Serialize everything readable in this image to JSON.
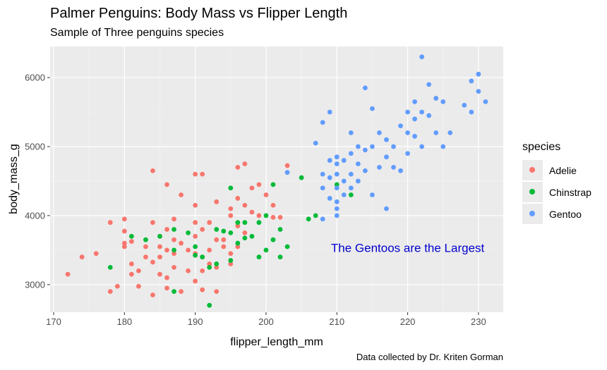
{
  "title": "Palmer Penguins: Body Mass vs Flipper Length",
  "subtitle": "Sample of Three penguins species",
  "caption": "Data collected by Dr. Kriten Gorman",
  "chart_data": {
    "type": "scatter",
    "title": "Palmer Penguins: Body Mass vs Flipper Length",
    "subtitle": "Sample of Three penguins species",
    "xlabel": "flipper_length_mm",
    "ylabel": "body_mass_g",
    "xlim": [
      169.5,
      233.5
    ],
    "ylim": [
      2600,
      6450
    ],
    "xticks": [
      170,
      180,
      190,
      200,
      210,
      220,
      230
    ],
    "yticks": [
      3000,
      4000,
      5000,
      6000
    ],
    "grid": true,
    "legend_title": "species",
    "legend_position": "right",
    "annotation": {
      "text": "The Gentoos are the Largest",
      "x": 220,
      "y": 3475
    },
    "series": [
      {
        "name": "Adelie",
        "color": "#F8766D",
        "points": [
          [
            172,
            3150
          ],
          [
            174,
            3400
          ],
          [
            176,
            3450
          ],
          [
            178,
            3900
          ],
          [
            178,
            2900
          ],
          [
            179,
            2975
          ],
          [
            180,
            3950
          ],
          [
            180,
            3775
          ],
          [
            180,
            3600
          ],
          [
            180,
            3550
          ],
          [
            181,
            3300
          ],
          [
            181,
            3150
          ],
          [
            181,
            3625
          ],
          [
            182,
            2975
          ],
          [
            182,
            3200
          ],
          [
            183,
            3400
          ],
          [
            183,
            3550
          ],
          [
            184,
            4650
          ],
          [
            184,
            3900
          ],
          [
            184,
            3325
          ],
          [
            184,
            2850
          ],
          [
            185,
            3700
          ],
          [
            185,
            3550
          ],
          [
            185,
            3400
          ],
          [
            185,
            3150
          ],
          [
            186,
            4450
          ],
          [
            186,
            3800
          ],
          [
            186,
            3500
          ],
          [
            186,
            3100
          ],
          [
            186,
            2950
          ],
          [
            187,
            3950
          ],
          [
            187,
            3650
          ],
          [
            187,
            3450
          ],
          [
            187,
            3250
          ],
          [
            188,
            4300
          ],
          [
            188,
            3600
          ],
          [
            188,
            2900
          ],
          [
            189,
            3500
          ],
          [
            189,
            3200
          ],
          [
            190,
            4600
          ],
          [
            190,
            4150
          ],
          [
            190,
            3900
          ],
          [
            190,
            3700
          ],
          [
            190,
            3450
          ],
          [
            190,
            3050
          ],
          [
            191,
            4600
          ],
          [
            191,
            3800
          ],
          [
            191,
            3400
          ],
          [
            191,
            3200
          ],
          [
            191,
            2925
          ],
          [
            192,
            3900
          ],
          [
            192,
            3500
          ],
          [
            192,
            3300
          ],
          [
            193,
            4200
          ],
          [
            193,
            3650
          ],
          [
            193,
            3250
          ],
          [
            193,
            2900
          ],
          [
            194,
            3650
          ],
          [
            194,
            3550
          ],
          [
            195,
            4100
          ],
          [
            195,
            4000
          ],
          [
            195,
            3450
          ],
          [
            195,
            3300
          ],
          [
            196,
            4700
          ],
          [
            196,
            4250
          ],
          [
            196,
            3850
          ],
          [
            196,
            3550
          ],
          [
            197,
            4750
          ],
          [
            197,
            4150
          ],
          [
            197,
            3750
          ],
          [
            198,
            4400
          ],
          [
            198,
            4050
          ],
          [
            199,
            4450
          ],
          [
            199,
            4000
          ],
          [
            200,
            4300
          ],
          [
            201,
            4150
          ],
          [
            201,
            3975
          ],
          [
            202,
            3975
          ],
          [
            203,
            4725
          ]
        ]
      },
      {
        "name": "Chinstrap",
        "color": "#00BA38",
        "points": [
          [
            178,
            3250
          ],
          [
            181,
            3700
          ],
          [
            183,
            3650
          ],
          [
            185,
            3700
          ],
          [
            187,
            3800
          ],
          [
            187,
            3500
          ],
          [
            187,
            2900
          ],
          [
            189,
            3750
          ],
          [
            190,
            3550
          ],
          [
            190,
            3425
          ],
          [
            191,
            3400
          ],
          [
            192,
            2700
          ],
          [
            192,
            3250
          ],
          [
            193,
            3300
          ],
          [
            193,
            3800
          ],
          [
            194,
            3775
          ],
          [
            195,
            4400
          ],
          [
            195,
            3750
          ],
          [
            195,
            3350
          ],
          [
            196,
            3900
          ],
          [
            196,
            3600
          ],
          [
            197,
            3900
          ],
          [
            197,
            3675
          ],
          [
            198,
            3700
          ],
          [
            199,
            3900
          ],
          [
            199,
            3400
          ],
          [
            200,
            4000
          ],
          [
            200,
            3500
          ],
          [
            201,
            4450
          ],
          [
            201,
            3650
          ],
          [
            202,
            3800
          ],
          [
            202,
            3400
          ],
          [
            203,
            3550
          ],
          [
            205,
            4550
          ],
          [
            206,
            3950
          ],
          [
            207,
            4000
          ],
          [
            210,
            4450
          ],
          [
            212,
            4300
          ]
        ]
      },
      {
        "name": "Gentoo",
        "color": "#619CFF",
        "points": [
          [
            203,
            4625
          ],
          [
            207,
            5050
          ],
          [
            208,
            5350
          ],
          [
            208,
            4600
          ],
          [
            208,
            4400
          ],
          [
            208,
            3950
          ],
          [
            209,
            5500
          ],
          [
            209,
            4800
          ],
          [
            209,
            4550
          ],
          [
            209,
            4250
          ],
          [
            210,
            4850
          ],
          [
            210,
            4750
          ],
          [
            210,
            4600
          ],
          [
            210,
            4400
          ],
          [
            210,
            4200
          ],
          [
            210,
            4100
          ],
          [
            210,
            4000
          ],
          [
            211,
            4800
          ],
          [
            211,
            4500
          ],
          [
            211,
            4300
          ],
          [
            212,
            5200
          ],
          [
            212,
            4900
          ],
          [
            212,
            4600
          ],
          [
            212,
            4400
          ],
          [
            213,
            5000
          ],
          [
            213,
            4750
          ],
          [
            213,
            4500
          ],
          [
            214,
            5850
          ],
          [
            214,
            4950
          ],
          [
            214,
            4650
          ],
          [
            215,
            5550
          ],
          [
            215,
            5000
          ],
          [
            215,
            4300
          ],
          [
            216,
            5200
          ],
          [
            216,
            4700
          ],
          [
            217,
            5100
          ],
          [
            217,
            4850
          ],
          [
            217,
            4100
          ],
          [
            218,
            5000
          ],
          [
            218,
            4700
          ],
          [
            219,
            5300
          ],
          [
            219,
            4650
          ],
          [
            220,
            5500
          ],
          [
            220,
            5200
          ],
          [
            220,
            4900
          ],
          [
            221,
            5650
          ],
          [
            221,
            5400
          ],
          [
            221,
            5150
          ],
          [
            222,
            6300
          ],
          [
            222,
            5500
          ],
          [
            222,
            5000
          ],
          [
            223,
            5900
          ],
          [
            223,
            5450
          ],
          [
            224,
            5700
          ],
          [
            224,
            5200
          ],
          [
            225,
            5650
          ],
          [
            225,
            5000
          ],
          [
            226,
            5200
          ],
          [
            228,
            5600
          ],
          [
            229,
            5950
          ],
          [
            229,
            5500
          ],
          [
            230,
            6050
          ],
          [
            230,
            5800
          ],
          [
            231,
            5650
          ]
        ]
      }
    ]
  }
}
